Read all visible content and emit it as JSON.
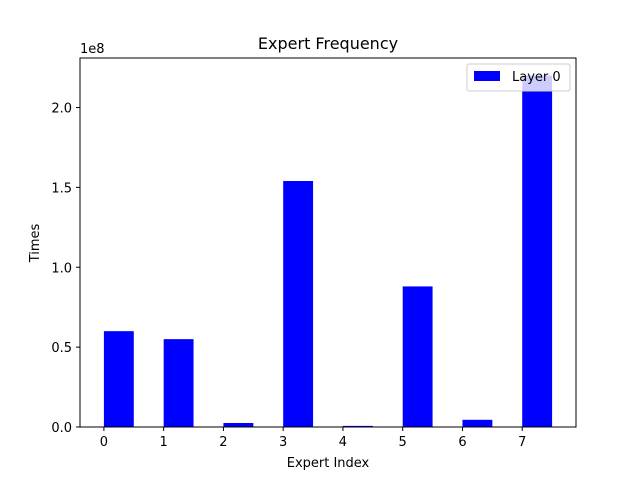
{
  "chart_data": {
    "type": "bar",
    "title": "Expert Frequency",
    "xlabel": "Expert Index",
    "ylabel": "Times",
    "y_offset_label": "1e8",
    "categories": [
      "0",
      "1",
      "2",
      "3",
      "4",
      "5",
      "6",
      "7"
    ],
    "x": [
      0,
      1,
      2,
      3,
      4,
      5,
      6,
      7
    ],
    "series": [
      {
        "name": "Layer 0",
        "color": "#0000ff",
        "values": [
          60000000,
          55000000,
          2500000,
          154000000,
          700000,
          88000000,
          4500000,
          220000000
        ]
      }
    ],
    "y_ticks": [
      0,
      50000000,
      100000000,
      150000000,
      200000000
    ],
    "y_tick_labels": [
      "0.0",
      "0.5",
      "1.0",
      "1.5",
      "2.0"
    ],
    "ylim": [
      0,
      231000000
    ],
    "xlim": [
      -0.4,
      7.9
    ],
    "grid": false,
    "legend_position": "top-right"
  }
}
